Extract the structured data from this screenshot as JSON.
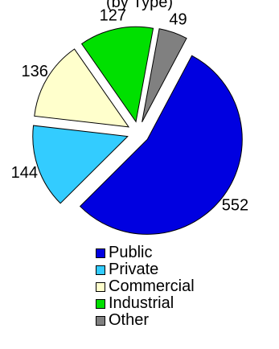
{
  "chart_data": {
    "type": "pie",
    "title": "(by Type)",
    "exploded": true,
    "slices": [
      {
        "label": "Public",
        "value": 552,
        "color": "#0000e0"
      },
      {
        "label": "Private",
        "value": 144,
        "color": "#33ccff"
      },
      {
        "label": "Commercial",
        "value": 136,
        "color": "#ffffcc"
      },
      {
        "label": "Industrial",
        "value": 127,
        "color": "#00e000"
      },
      {
        "label": "Other",
        "value": 49,
        "color": "#808080"
      }
    ],
    "legend_position": "bottom"
  }
}
